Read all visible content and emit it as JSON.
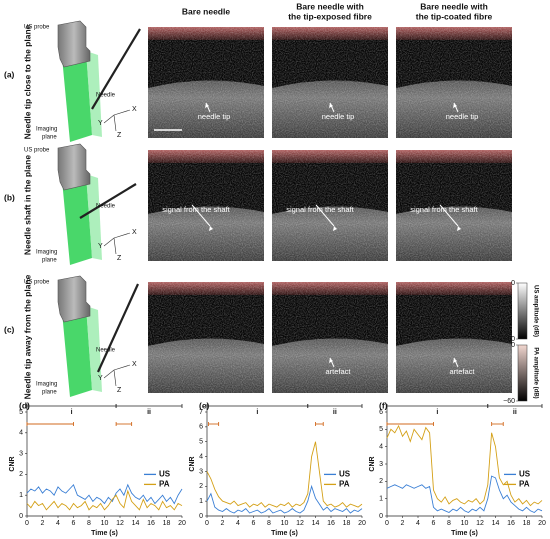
{
  "figure": {
    "columns": [
      [
        "Bare needle"
      ],
      [
        "Bare needle with",
        "the tip-exposed fibre"
      ],
      [
        "Bare needle with",
        "the tip-coated fibre"
      ]
    ],
    "rows": [
      {
        "label": "(a)",
        "title": "Needle tip close to the plane",
        "annotations": [
          {
            "column": 0,
            "text": "needle tip"
          },
          {
            "column": 1,
            "text": "needle tip"
          },
          {
            "column": 2,
            "text": "needle tip"
          }
        ]
      },
      {
        "label": "(b)",
        "title": "Needle shaft in the plane",
        "annotations": [
          {
            "column": 0,
            "text": "signal from the shaft"
          },
          {
            "column": 1,
            "text": "signal from the shaft"
          },
          {
            "column": 2,
            "text": "signal from the shaft"
          }
        ]
      },
      {
        "label": "(c)",
        "title": "Needle tip away from the plane",
        "annotations": [
          {
            "column": 1,
            "text": "artefact"
          },
          {
            "column": 2,
            "text": "artefact"
          }
        ]
      }
    ],
    "schematic": {
      "probe": "US probe",
      "needle": "Needle",
      "plane": [
        "Imaging",
        "plane"
      ],
      "axes": [
        "X",
        "Y",
        "Z"
      ]
    },
    "colorbars": [
      {
        "label": "US amplitude (dB)",
        "color": "#ffffff",
        "ticks": [
          0,
          {
            "value": -60,
            "label": "−60"
          }
        ]
      },
      {
        "label": "PA amplitude (dB)",
        "color": "#f2d7d0",
        "ticks": [
          0,
          {
            "value": -60,
            "label": "−60"
          }
        ]
      }
    ]
  },
  "chart_data": [
    {
      "type": "line",
      "panel": "(d)",
      "xlabel": "Time (s)",
      "ylabel": "CNR",
      "x": [
        0,
        0.5,
        1,
        1.5,
        2,
        2.5,
        3,
        3.5,
        4,
        4.5,
        5,
        5.5,
        6,
        6.5,
        7,
        7.5,
        8,
        8.5,
        9,
        9.5,
        10,
        10.5,
        11,
        11.5,
        12,
        12.5,
        13,
        13.5,
        14,
        14.5,
        15,
        15.5,
        16,
        16.5,
        17,
        17.5,
        18,
        18.5,
        19,
        19.5,
        20
      ],
      "series": [
        {
          "name": "US",
          "color": "#3a7fd5",
          "values": [
            1.1,
            1.3,
            1.2,
            1.4,
            1.1,
            1.3,
            1.2,
            1.0,
            1.4,
            1.2,
            1.1,
            1.3,
            1.5,
            1.0,
            0.9,
            0.8,
            1.0,
            0.7,
            0.9,
            0.8,
            0.6,
            0.9,
            0.7,
            1.1,
            1.3,
            1.0,
            1.5,
            1.1,
            0.9,
            0.8,
            1.0,
            0.7,
            0.9,
            0.6,
            0.8,
            1.0,
            0.7,
            0.9,
            0.6,
            1.0,
            1.3
          ]
        },
        {
          "name": "PA",
          "color": "#d4a017",
          "values": [
            0.6,
            0.4,
            0.7,
            0.5,
            0.6,
            0.3,
            0.5,
            0.7,
            0.4,
            0.6,
            0.5,
            0.3,
            0.6,
            0.4,
            0.5,
            0.7,
            0.3,
            0.5,
            0.4,
            0.6,
            0.3,
            0.5,
            0.8,
            1.0,
            0.6,
            0.4,
            1.2,
            0.7,
            0.5,
            0.3,
            0.8,
            0.4,
            0.6,
            0.5,
            0.3,
            0.7,
            0.4,
            0.5,
            0.3,
            0.6,
            0.5
          ]
        }
      ],
      "xlim": [
        0,
        20
      ],
      "xticks": [
        0,
        2,
        4,
        6,
        8,
        10,
        12,
        14,
        16,
        18,
        20
      ],
      "ylim": [
        0,
        5
      ],
      "yticks": [
        0,
        1,
        2,
        3,
        4,
        5
      ],
      "legend": "right",
      "phases": [
        {
          "label": "i",
          "x": [
            0,
            11.5
          ]
        },
        {
          "label": "ii",
          "x": [
            11.5,
            20
          ]
        }
      ],
      "brackets": [
        [
          0,
          6
        ],
        [
          11.5,
          13.5
        ]
      ],
      "bracket_color": "#d2691e"
    },
    {
      "type": "line",
      "panel": "(e)",
      "xlabel": "Time (s)",
      "ylabel": "CNR",
      "x": [
        0,
        0.5,
        1,
        1.5,
        2,
        2.5,
        3,
        3.5,
        4,
        4.5,
        5,
        5.5,
        6,
        6.5,
        7,
        7.5,
        8,
        8.5,
        9,
        9.5,
        10,
        10.5,
        11,
        11.5,
        12,
        12.5,
        13,
        13.5,
        14,
        14.5,
        15,
        15.5,
        16,
        16.5,
        17,
        17.5,
        18,
        18.5,
        19,
        19.5,
        20
      ],
      "series": [
        {
          "name": "US",
          "color": "#3a7fd5",
          "values": [
            1.0,
            1.5,
            0.6,
            0.4,
            0.3,
            0.5,
            0.3,
            0.2,
            0.4,
            0.3,
            0.5,
            0.2,
            0.3,
            0.4,
            0.2,
            0.3,
            0.5,
            0.2,
            0.3,
            0.4,
            0.2,
            0.3,
            0.5,
            0.3,
            0.2,
            0.4,
            1.0,
            2.0,
            1.2,
            0.8,
            0.4,
            0.6,
            0.3,
            0.5,
            0.4,
            0.3,
            0.5,
            0.2,
            0.4,
            0.3,
            0.5
          ]
        },
        {
          "name": "PA",
          "color": "#d4a017",
          "values": [
            3.0,
            2.5,
            1.8,
            1.3,
            1.0,
            0.9,
            0.8,
            1.0,
            0.7,
            0.8,
            0.9,
            0.6,
            0.8,
            0.7,
            0.9,
            0.6,
            0.8,
            0.7,
            0.6,
            0.8,
            0.7,
            0.9,
            0.6,
            0.8,
            0.7,
            0.9,
            1.5,
            4.0,
            5.0,
            3.0,
            1.0,
            0.7,
            0.8,
            0.6,
            0.7,
            0.9,
            0.6,
            0.8,
            0.7,
            0.6,
            0.8
          ]
        }
      ],
      "xlim": [
        0,
        20
      ],
      "xticks": [
        0,
        2,
        4,
        6,
        8,
        10,
        12,
        14,
        16,
        18,
        20
      ],
      "ylim": [
        0,
        7
      ],
      "yticks": [
        0,
        1,
        2,
        3,
        4,
        5,
        6,
        7
      ],
      "legend": "right",
      "phases": [
        {
          "label": "i",
          "x": [
            0,
            13
          ]
        },
        {
          "label": "ii",
          "x": [
            13,
            20
          ]
        }
      ],
      "brackets": [
        [
          0.2,
          1.5
        ],
        [
          14,
          15
        ]
      ],
      "bracket_color": "#d2691e"
    },
    {
      "type": "line",
      "panel": "(f)",
      "xlabel": "Time (s)",
      "ylabel": "CNR",
      "x": [
        0,
        0.5,
        1,
        1.5,
        2,
        2.5,
        3,
        3.5,
        4,
        4.5,
        5,
        5.5,
        6,
        6.5,
        7,
        7.5,
        8,
        8.5,
        9,
        9.5,
        10,
        10.5,
        11,
        11.5,
        12,
        12.5,
        13,
        13.5,
        14,
        14.5,
        15,
        15.5,
        16,
        16.5,
        17,
        17.5,
        18,
        18.5,
        19,
        19.5,
        20
      ],
      "series": [
        {
          "name": "US",
          "color": "#3a7fd5",
          "values": [
            1.6,
            1.7,
            1.8,
            1.7,
            1.6,
            1.8,
            1.7,
            1.6,
            1.7,
            1.8,
            1.6,
            1.7,
            0.5,
            0.3,
            0.4,
            0.3,
            0.2,
            0.4,
            0.3,
            0.5,
            0.3,
            0.2,
            0.4,
            0.3,
            0.5,
            0.3,
            1.0,
            2.3,
            2.2,
            1.5,
            1.0,
            1.2,
            0.8,
            0.6,
            0.4,
            0.3,
            0.5,
            0.3,
            0.2,
            0.4,
            0.3
          ]
        },
        {
          "name": "PA",
          "color": "#d4a017",
          "values": [
            4.5,
            5.0,
            4.8,
            5.2,
            4.6,
            4.9,
            4.3,
            5.0,
            4.7,
            4.4,
            5.1,
            4.8,
            1.5,
            1.0,
            0.8,
            1.1,
            0.7,
            0.9,
            1.0,
            0.8,
            0.7,
            0.9,
            0.8,
            1.0,
            0.7,
            0.9,
            1.8,
            4.8,
            4.0,
            2.2,
            1.8,
            2.0,
            1.2,
            0.8,
            1.0,
            0.7,
            0.9,
            0.6,
            0.8,
            0.7,
            0.9
          ]
        }
      ],
      "xlim": [
        0,
        20
      ],
      "xticks": [
        0,
        2,
        4,
        6,
        8,
        10,
        12,
        14,
        16,
        18,
        20
      ],
      "ylim": [
        0,
        6
      ],
      "yticks": [
        0,
        1,
        2,
        3,
        4,
        5,
        6
      ],
      "legend": "right",
      "phases": [
        {
          "label": "i",
          "x": [
            0,
            13
          ]
        },
        {
          "label": "ii",
          "x": [
            13,
            20
          ]
        }
      ],
      "brackets": [
        [
          0,
          6
        ],
        [
          13.5,
          15
        ]
      ],
      "bracket_color": "#d2691e"
    }
  ]
}
